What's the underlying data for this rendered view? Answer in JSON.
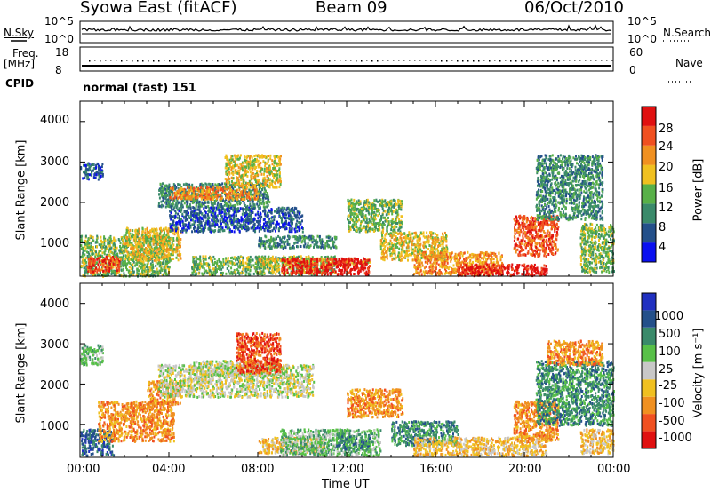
{
  "header": {
    "title": "Syowa East (fitACF)",
    "beam": "Beam 09",
    "date": "06/Oct/2010"
  },
  "top_panels": {
    "nsky_label": "N.Sky",
    "nsearch_label": "N.Search",
    "nsky_ticks": [
      "10^5",
      "10^0"
    ],
    "nsearch_ticks": [
      "10^5",
      "10^0"
    ],
    "freq_label_1": "Freq.",
    "freq_label_2": "[MHz]",
    "freq_ticks": [
      "18",
      "8"
    ],
    "nave_label": "Nave",
    "nave_ticks": [
      "60",
      "0"
    ],
    "cpid_label": "CPID",
    "cpid_value": "normal (fast) 151"
  },
  "colors": {
    "power": [
      "#0a10f0",
      "#24508a",
      "#3a8a6a",
      "#58b048",
      "#f0c020",
      "#f09020",
      "#f05020",
      "#e01010"
    ],
    "velocity": [
      "#e01010",
      "#f05020",
      "#f09020",
      "#f0c020",
      "#c8c8c8",
      "#58c048",
      "#3a8a6a",
      "#24508a",
      "#2030c0"
    ]
  },
  "chart_data": [
    {
      "type": "heatmap",
      "ylabel": "Slant Range [km]",
      "ylim": [
        180,
        4500
      ],
      "yticks": [
        "4000",
        "3000",
        "2000",
        "1000"
      ],
      "xlim": [
        0,
        24
      ],
      "colorbar_label": "Power [dB]",
      "colorbar_ticks": [
        "28",
        "24",
        "20",
        "16",
        "12",
        "8",
        "4"
      ],
      "regions": [
        {
          "t0": 0.0,
          "t1": 1.0,
          "r0": 2600,
          "r1": 3000,
          "level": 1
        },
        {
          "t0": 0.0,
          "t1": 4.0,
          "r0": 200,
          "r1": 1200,
          "level": 3
        },
        {
          "t0": 0.3,
          "t1": 1.8,
          "r0": 300,
          "r1": 700,
          "level": 6
        },
        {
          "t0": 2.0,
          "t1": 4.5,
          "r0": 600,
          "r1": 1400,
          "level": 4
        },
        {
          "t0": 3.5,
          "t1": 8.5,
          "r0": 1900,
          "r1": 2500,
          "level": 2
        },
        {
          "t0": 4.0,
          "t1": 8.0,
          "r0": 2100,
          "r1": 2400,
          "level": 5
        },
        {
          "t0": 6.5,
          "t1": 9.0,
          "r0": 2400,
          "r1": 3200,
          "level": 4
        },
        {
          "t0": 4.0,
          "t1": 10.0,
          "r0": 1300,
          "r1": 1900,
          "level": 1
        },
        {
          "t0": 5.0,
          "t1": 11.5,
          "r0": 250,
          "r1": 700,
          "level": 3
        },
        {
          "t0": 8.0,
          "t1": 11.5,
          "r0": 900,
          "r1": 1200,
          "level": 2
        },
        {
          "t0": 8.0,
          "t1": 13.0,
          "r0": 450,
          "r1": 650,
          "level": 4
        },
        {
          "t0": 9.0,
          "t1": 13.0,
          "r0": 250,
          "r1": 650,
          "level": 7
        },
        {
          "t0": 12.0,
          "t1": 14.5,
          "r0": 1300,
          "r1": 2100,
          "level": 3
        },
        {
          "t0": 13.5,
          "t1": 16.5,
          "r0": 600,
          "r1": 1300,
          "level": 4
        },
        {
          "t0": 15.0,
          "t1": 19.0,
          "r0": 250,
          "r1": 800,
          "level": 5
        },
        {
          "t0": 17.0,
          "t1": 21.0,
          "r0": 220,
          "r1": 500,
          "level": 7
        },
        {
          "t0": 19.5,
          "t1": 21.5,
          "r0": 700,
          "r1": 1700,
          "level": 6
        },
        {
          "t0": 20.5,
          "t1": 23.5,
          "r0": 1600,
          "r1": 3200,
          "level": 2
        },
        {
          "t0": 22.5,
          "t1": 24.0,
          "r0": 300,
          "r1": 1500,
          "level": 3
        }
      ]
    },
    {
      "type": "heatmap",
      "ylabel": "Slant Range [km]",
      "ylim": [
        180,
        4500
      ],
      "yticks": [
        "4000",
        "3000",
        "2000",
        "1000"
      ],
      "xlabel": "Time UT",
      "xticks": [
        "00:00",
        "04:00",
        "08:00",
        "12:00",
        "16:00",
        "20:00",
        "00:00"
      ],
      "xlim": [
        0,
        24
      ],
      "colorbar_label": "Velocity [m s⁻¹]",
      "colorbar_ticks": [
        "1000",
        "500",
        "100",
        "25",
        "-25",
        "-100",
        "-500",
        "-1000"
      ],
      "regions": [
        {
          "t0": 0.0,
          "t1": 1.0,
          "r0": 2500,
          "r1": 3000,
          "level": 5
        },
        {
          "t0": 0.0,
          "t1": 1.5,
          "r0": 250,
          "r1": 900,
          "level": 7
        },
        {
          "t0": 0.8,
          "t1": 4.2,
          "r0": 600,
          "r1": 1600,
          "level": 2
        },
        {
          "t0": 3.0,
          "t1": 4.5,
          "r0": 1500,
          "r1": 2100,
          "level": 2
        },
        {
          "t0": 3.5,
          "t1": 10.5,
          "r0": 1700,
          "r1": 2500,
          "level": 4
        },
        {
          "t0": 5.0,
          "t1": 9.0,
          "r0": 2200,
          "r1": 2600,
          "level": 4
        },
        {
          "t0": 7.0,
          "t1": 9.0,
          "r0": 2300,
          "r1": 3300,
          "level": 1
        },
        {
          "t0": 8.0,
          "t1": 11.0,
          "r0": 300,
          "r1": 700,
          "level": 3
        },
        {
          "t0": 9.0,
          "t1": 13.5,
          "r0": 250,
          "r1": 900,
          "level": 5
        },
        {
          "t0": 11.5,
          "t1": 13.0,
          "r0": 400,
          "r1": 800,
          "level": 6
        },
        {
          "t0": 12.0,
          "t1": 14.5,
          "r0": 1200,
          "r1": 1900,
          "level": 2
        },
        {
          "t0": 14.0,
          "t1": 17.0,
          "r0": 500,
          "r1": 1100,
          "level": 6
        },
        {
          "t0": 15.0,
          "t1": 21.0,
          "r0": 250,
          "r1": 700,
          "level": 3
        },
        {
          "t0": 19.5,
          "t1": 21.5,
          "r0": 600,
          "r1": 1600,
          "level": 2
        },
        {
          "t0": 20.5,
          "t1": 24.0,
          "r0": 1000,
          "r1": 2600,
          "level": 6
        },
        {
          "t0": 21.0,
          "t1": 23.5,
          "r0": 2500,
          "r1": 3100,
          "level": 2
        },
        {
          "t0": 22.5,
          "t1": 24.0,
          "r0": 300,
          "r1": 900,
          "level": 3
        }
      ]
    }
  ]
}
